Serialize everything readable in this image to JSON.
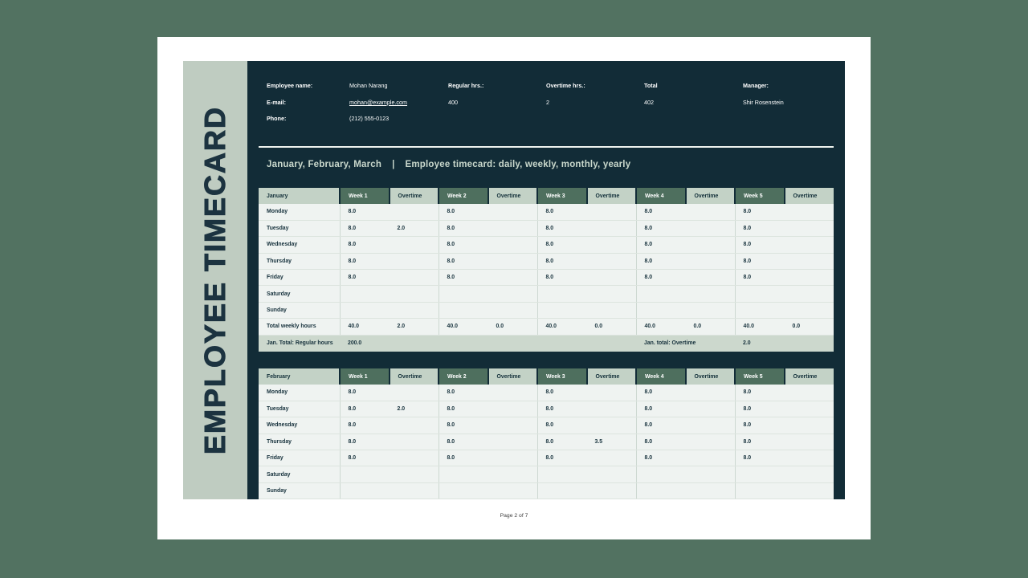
{
  "colors": {
    "outer_background": "#527261",
    "page_background": "#ffffff",
    "panel_background": "#122c37",
    "sidebar_background": "#bfccc1",
    "week_header_green": "#4e6f5e",
    "light_sage": "#c3d2c6",
    "total_row_sage": "#ccd8cd",
    "row_background": "#eff3f1",
    "ink": "#16313c",
    "light_text": "#c9d8cc"
  },
  "sidebar": {
    "title": "EMPLOYEE TIMECARD"
  },
  "info": {
    "employee": {
      "label": "Employee name:",
      "value": "Mohan Narang"
    },
    "email": {
      "label": "E-mail:",
      "value": "mohan@example.com"
    },
    "phone": {
      "label": "Phone:",
      "value": "(212) 555-0123"
    },
    "regular": {
      "label": "Regular hrs.:",
      "value": "400"
    },
    "overtime": {
      "label": "Overtime hrs.:",
      "value": "2"
    },
    "total": {
      "label": "Total",
      "value": "402"
    },
    "manager": {
      "label": "Manager:",
      "value": "Shir Rosenstein"
    }
  },
  "section": {
    "months": "January, February, March",
    "divider": "|",
    "subtitle": "Employee timecard: daily, weekly, monthly, yearly"
  },
  "week_headers": [
    "Week 1",
    "Overtime",
    "Week 2",
    "Overtime",
    "Week 3",
    "Overtime",
    "Week 4",
    "Overtime",
    "Week 5",
    "Overtime"
  ],
  "tables": [
    {
      "month": "January",
      "rows": [
        {
          "day": "Monday",
          "cells": [
            "8.0",
            "",
            "8.0",
            "",
            "8.0",
            "",
            "8.0",
            "",
            "8.0",
            ""
          ]
        },
        {
          "day": "Tuesday",
          "cells": [
            "8.0",
            "2.0",
            "8.0",
            "",
            "8.0",
            "",
            "8.0",
            "",
            "8.0",
            ""
          ]
        },
        {
          "day": "Wednesday",
          "cells": [
            "8.0",
            "",
            "8.0",
            "",
            "8.0",
            "",
            "8.0",
            "",
            "8.0",
            ""
          ]
        },
        {
          "day": "Thursday",
          "cells": [
            "8.0",
            "",
            "8.0",
            "",
            "8.0",
            "",
            "8.0",
            "",
            "8.0",
            ""
          ]
        },
        {
          "day": "Friday",
          "cells": [
            "8.0",
            "",
            "8.0",
            "",
            "8.0",
            "",
            "8.0",
            "",
            "8.0",
            ""
          ]
        },
        {
          "day": "Saturday",
          "cells": [
            "",
            "",
            "",
            "",
            "",
            "",
            "",
            "",
            "",
            ""
          ]
        },
        {
          "day": "Sunday",
          "cells": [
            "",
            "",
            "",
            "",
            "",
            "",
            "",
            "",
            "",
            ""
          ]
        },
        {
          "day": "Total weekly hours",
          "cells": [
            "40.0",
            "2.0",
            "40.0",
            "0.0",
            "40.0",
            "0.0",
            "40.0",
            "0.0",
            "40.0",
            "0.0"
          ]
        }
      ],
      "total": {
        "label": "Jan. Total: Regular hours",
        "value": "200.0",
        "label2": "Jan. total: Overtime",
        "value2": "2.0"
      }
    },
    {
      "month": "February",
      "rows": [
        {
          "day": "Monday",
          "cells": [
            "8.0",
            "",
            "8.0",
            "",
            "8.0",
            "",
            "8.0",
            "",
            "8.0",
            ""
          ]
        },
        {
          "day": "Tuesday",
          "cells": [
            "8.0",
            "2.0",
            "8.0",
            "",
            "8.0",
            "",
            "8.0",
            "",
            "8.0",
            ""
          ]
        },
        {
          "day": "Wednesday",
          "cells": [
            "8.0",
            "",
            "8.0",
            "",
            "8.0",
            "",
            "8.0",
            "",
            "8.0",
            ""
          ]
        },
        {
          "day": "Thursday",
          "cells": [
            "8.0",
            "",
            "8.0",
            "",
            "8.0",
            "3.5",
            "8.0",
            "",
            "8.0",
            ""
          ]
        },
        {
          "day": "Friday",
          "cells": [
            "8.0",
            "",
            "8.0",
            "",
            "8.0",
            "",
            "8.0",
            "",
            "8.0",
            ""
          ]
        },
        {
          "day": "Saturday",
          "cells": [
            "",
            "",
            "",
            "",
            "",
            "",
            "",
            "",
            "",
            ""
          ]
        },
        {
          "day": "Sunday",
          "cells": [
            "",
            "",
            "",
            "",
            "",
            "",
            "",
            "",
            "",
            ""
          ]
        }
      ],
      "total": null
    }
  ],
  "footer": {
    "page_label": "Page 2 of 7"
  }
}
